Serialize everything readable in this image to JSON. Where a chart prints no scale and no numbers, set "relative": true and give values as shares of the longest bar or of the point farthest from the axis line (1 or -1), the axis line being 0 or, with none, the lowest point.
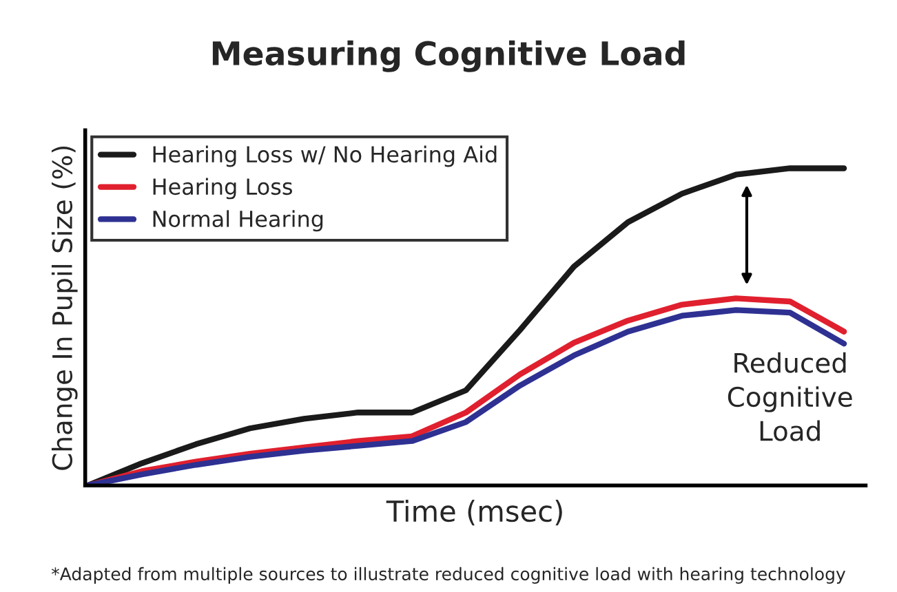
{
  "chart_data": {
    "type": "line",
    "title": "Measuring Cognitive Load",
    "xlabel": "Time (msec)",
    "ylabel": "Change In Pupil Size (%)",
    "relative": true,
    "categories": [
      null,
      null,
      null,
      null,
      null,
      null,
      null,
      null,
      null,
      null,
      null,
      null,
      null,
      null,
      null
    ],
    "series": [
      {
        "name": "Hearing Loss w/ No Hearing Aid",
        "color": "#1a1a1a",
        "values": [
          0,
          0.07,
          0.13,
          0.18,
          0.21,
          0.23,
          0.23,
          0.3,
          0.49,
          0.69,
          0.83,
          0.92,
          0.98,
          1.0,
          1.0
        ]
      },
      {
        "name": "Hearing Loss",
        "color": "#e0202e",
        "values": [
          0,
          0.045,
          0.075,
          0.1,
          0.12,
          0.14,
          0.155,
          0.23,
          0.35,
          0.45,
          0.52,
          0.57,
          0.59,
          0.58,
          0.485
        ]
      },
      {
        "name": "Normal Hearing",
        "color": "#2e3192",
        "values": [
          0,
          0.035,
          0.065,
          0.09,
          0.11,
          0.125,
          0.14,
          0.2,
          0.315,
          0.41,
          0.485,
          0.535,
          0.553,
          0.545,
          0.447
        ]
      }
    ],
    "annotations": [
      "Reduced\nCognitive\nLoad",
      "*Adapted from multiple sources to illustrate reduced cognitive load with hearing technology"
    ],
    "legend": "top left",
    "grid": false,
    "line_style": "solid",
    "marker": "none"
  }
}
